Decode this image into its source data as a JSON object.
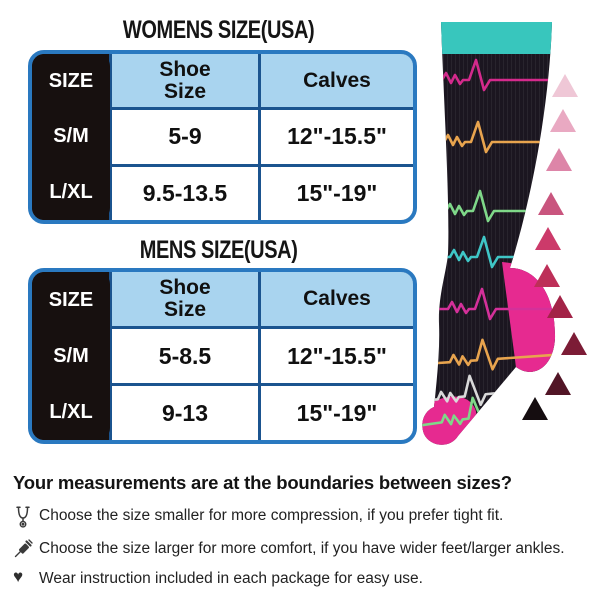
{
  "chart_data": [
    {
      "type": "table",
      "title": "WOMENS SIZE(USA)",
      "columns": [
        "SIZE",
        "Shoe Size",
        "Calves"
      ],
      "rows": [
        [
          "S/M",
          "5-9",
          "12\"-15.5\""
        ],
        [
          "L/XL",
          "9.5-13.5",
          "15\"-19\""
        ]
      ]
    },
    {
      "type": "table",
      "title": "MENS SIZE(USA)",
      "columns": [
        "SIZE",
        "Shoe Size",
        "Calves"
      ],
      "rows": [
        [
          "S/M",
          "5-8.5",
          "12\"-15.5\""
        ],
        [
          "L/XL",
          "9-13",
          "15\"-19\""
        ]
      ]
    }
  ],
  "footer": {
    "heading": "Your measurements are at the boundaries between sizes?",
    "tips": [
      {
        "icon": "stethoscope-icon",
        "text": "Choose the size smaller for more compression, if you prefer tight fit."
      },
      {
        "icon": "syringe-icon",
        "text": "Choose the size larger for more comfort, if you have wider feet/larger ankles."
      },
      {
        "icon": "heart-icon",
        "text": "Wear instruction included in each package for easy use."
      }
    ]
  },
  "table_style": {
    "outer_border": "#2a79c0",
    "separator": "#1b548f",
    "header_fill": "#a9d4ef",
    "size_column_fill": "#17100f"
  },
  "sock": {
    "cuff_color": "#38c6bd",
    "body_color": "#1b1620",
    "heel_toe_color": "#e62a90",
    "ekg_colors": [
      "#d42a8c",
      "#e8a44e",
      "#7fd889",
      "#3fc6c6",
      "#d4309a",
      "#e8a44e",
      "#d9d9d9",
      "#7fd889"
    ]
  },
  "size_triangles": {
    "colors": [
      "#efc7d6",
      "#e9a9c2",
      "#dd85a8",
      "#c9557e",
      "#cc3a6a",
      "#bd2f58",
      "#a32347",
      "#7c1c36",
      "#521526",
      "#150d10"
    ]
  }
}
